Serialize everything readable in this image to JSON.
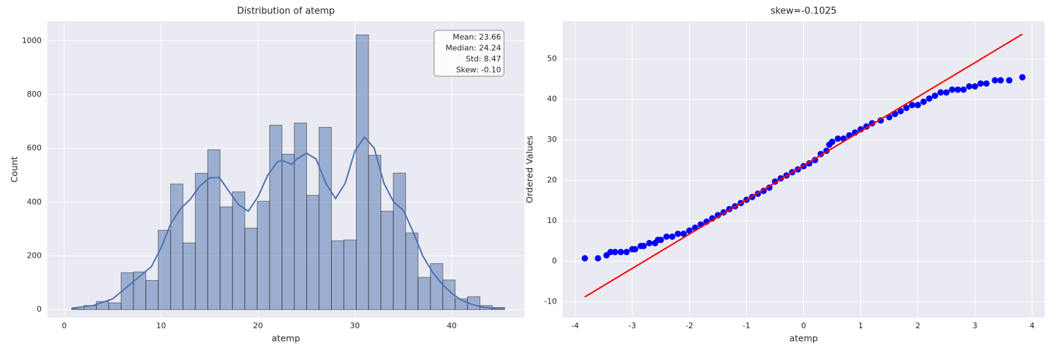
{
  "chart_data": [
    {
      "type": "histogram",
      "title": "Distribution of atemp",
      "xlabel": "atemp",
      "ylabel": "Count",
      "bins": [
        0.76,
        2.037,
        3.314,
        4.591,
        5.868,
        7.145,
        8.422,
        9.699,
        10.976,
        12.253,
        13.53,
        14.807,
        16.084,
        17.361,
        18.638,
        19.915,
        21.192,
        22.469,
        23.746,
        25.023,
        26.3,
        27.577,
        28.854,
        30.131,
        31.408,
        32.685,
        33.962,
        35.239,
        36.516,
        37.793,
        39.07,
        40.347,
        41.624,
        42.901,
        44.178,
        45.455
      ],
      "counts": [
        3,
        15,
        30,
        25,
        137,
        140,
        108,
        295,
        467,
        248,
        507,
        595,
        382,
        438,
        303,
        403,
        686,
        578,
        694,
        425,
        678,
        256,
        259,
        1022,
        574,
        366,
        508,
        285,
        120,
        171,
        110,
        40,
        48,
        15,
        8
      ],
      "color": "#4c72b0",
      "kde": {
        "x": [
          0.76,
          3,
          5,
          7,
          9,
          10,
          11,
          12,
          13,
          14,
          15,
          16,
          17,
          18,
          19,
          20,
          21,
          22,
          22.5,
          23.5,
          24,
          25,
          26,
          27,
          28,
          29,
          30,
          31,
          32,
          33,
          34,
          35,
          36,
          37,
          38,
          39,
          40,
          41,
          42,
          43,
          44,
          45.455
        ],
        "values": [
          5,
          15,
          40,
          100,
          160,
          230,
          320,
          375,
          410,
          460,
          490,
          492,
          440,
          390,
          366,
          420,
          500,
          550,
          555,
          540,
          560,
          582,
          560,
          470,
          413,
          470,
          590,
          642,
          600,
          470,
          400,
          370,
          290,
          200,
          140,
          95,
          60,
          35,
          20,
          10,
          5,
          2
        ],
        "color": "#4c72b0"
      },
      "annotation": [
        "Mean: 23.66",
        "Median: 24.24",
        "Std: 8.47",
        "Skew: -0.10"
      ],
      "xlim": [
        -1.75,
        47.5
      ],
      "ylim": [
        -30,
        1073
      ],
      "xticks": [
        0,
        10,
        20,
        30,
        40
      ],
      "yticks": [
        0,
        200,
        400,
        600,
        800,
        1000
      ],
      "grid": true
    },
    {
      "type": "scatter",
      "title": "skew=-0.1025",
      "xlabel": "atemp",
      "ylabel": "Ordered Values",
      "x": [
        -3.83,
        -3.6,
        -3.45,
        -3.38,
        -3.3,
        -3.2,
        -3.1,
        -3.0,
        -2.95,
        -2.85,
        -2.8,
        -2.7,
        -2.6,
        -2.55,
        -2.5,
        -2.4,
        -2.3,
        -2.2,
        -2.1,
        -2.0,
        -1.9,
        -1.8,
        -1.7,
        -1.6,
        -1.5,
        -1.4,
        -1.3,
        -1.2,
        -1.1,
        -1.0,
        -0.9,
        -0.8,
        -0.7,
        -0.6,
        -0.5,
        -0.4,
        -0.3,
        -0.2,
        -0.1,
        0.0,
        0.1,
        0.2,
        0.3,
        0.4,
        0.45,
        0.5,
        0.6,
        0.7,
        0.8,
        0.9,
        1.0,
        1.1,
        1.2,
        1.35,
        1.5,
        1.6,
        1.7,
        1.8,
        1.9,
        2.0,
        2.1,
        2.2,
        2.3,
        2.4,
        2.5,
        2.6,
        2.7,
        2.8,
        2.9,
        3.0,
        3.1,
        3.2,
        3.35,
        3.45,
        3.6,
        3.83
      ],
      "values": [
        0.76,
        0.76,
        1.5,
        2.3,
        2.3,
        2.3,
        2.3,
        3.0,
        3.0,
        3.8,
        3.8,
        4.5,
        4.5,
        5.3,
        5.3,
        6.1,
        6.1,
        6.8,
        6.8,
        7.6,
        8.3,
        9.1,
        9.8,
        10.6,
        11.4,
        12.1,
        12.9,
        13.6,
        14.4,
        15.2,
        15.9,
        16.7,
        17.4,
        18.2,
        19.7,
        20.5,
        21.2,
        22.0,
        22.7,
        23.5,
        24.2,
        25.0,
        26.5,
        27.3,
        28.8,
        29.5,
        30.3,
        30.3,
        31.1,
        31.8,
        32.6,
        33.3,
        34.1,
        34.8,
        35.6,
        36.4,
        37.1,
        37.9,
        38.6,
        38.6,
        39.4,
        40.2,
        40.9,
        41.7,
        41.7,
        42.4,
        42.4,
        42.4,
        43.2,
        43.2,
        43.9,
        43.9,
        44.7,
        44.7,
        44.7,
        45.45
      ],
      "color": "#0000ff",
      "fit_line": {
        "x": [
          -3.83,
          3.83
        ],
        "values": [
          -8.78,
          56.1
        ],
        "color": "#ff0000"
      },
      "xlim": [
        -4.22,
        4.22
      ],
      "ylim": [
        -13.9,
        59.3
      ],
      "xticks": [
        -4,
        -3,
        -2,
        -1,
        0,
        1,
        2,
        3,
        4
      ],
      "yticks": [
        -10,
        0,
        10,
        20,
        30,
        40,
        50
      ],
      "grid": true
    }
  ]
}
